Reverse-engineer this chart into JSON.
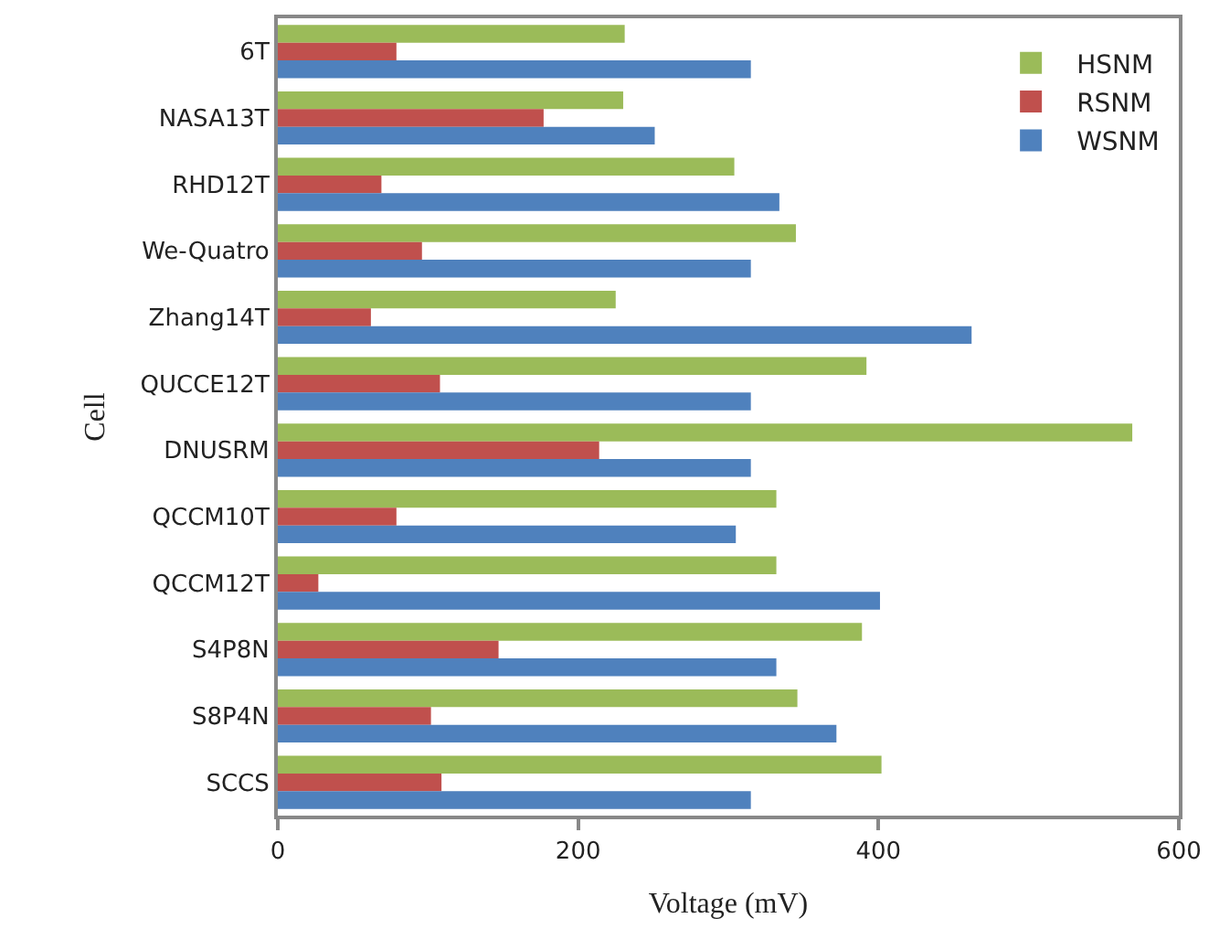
{
  "chart_data": {
    "type": "bar",
    "orientation": "horizontal",
    "xlabel": "Voltage (mV)",
    "ylabel": "Cell",
    "categories": [
      "6T",
      "NASA13T",
      "RHD12T",
      "We-Quatro",
      "Zhang14T",
      "QUCCE12T",
      "DNUSRM",
      "QCCM10T",
      "QCCM12T",
      "S4P8N",
      "S8P4N",
      "SCCS"
    ],
    "series": [
      {
        "name": "HSNM",
        "color": "#9bbb59",
        "values": [
          231,
          230,
          304,
          345,
          225,
          392,
          569,
          332,
          332,
          389,
          346,
          402
        ]
      },
      {
        "name": "RSNM",
        "color": "#c0504d",
        "values": [
          79,
          177,
          69,
          96,
          62,
          108,
          214,
          79,
          27,
          147,
          102,
          109
        ]
      },
      {
        "name": "WSNM",
        "color": "#4f81bd",
        "values": [
          315,
          251,
          334,
          315,
          462,
          315,
          315,
          305,
          401,
          332,
          372,
          315
        ]
      }
    ],
    "xlim": [
      0,
      600
    ],
    "xticks": [
      0,
      200,
      400,
      600
    ],
    "legend": "top right"
  }
}
